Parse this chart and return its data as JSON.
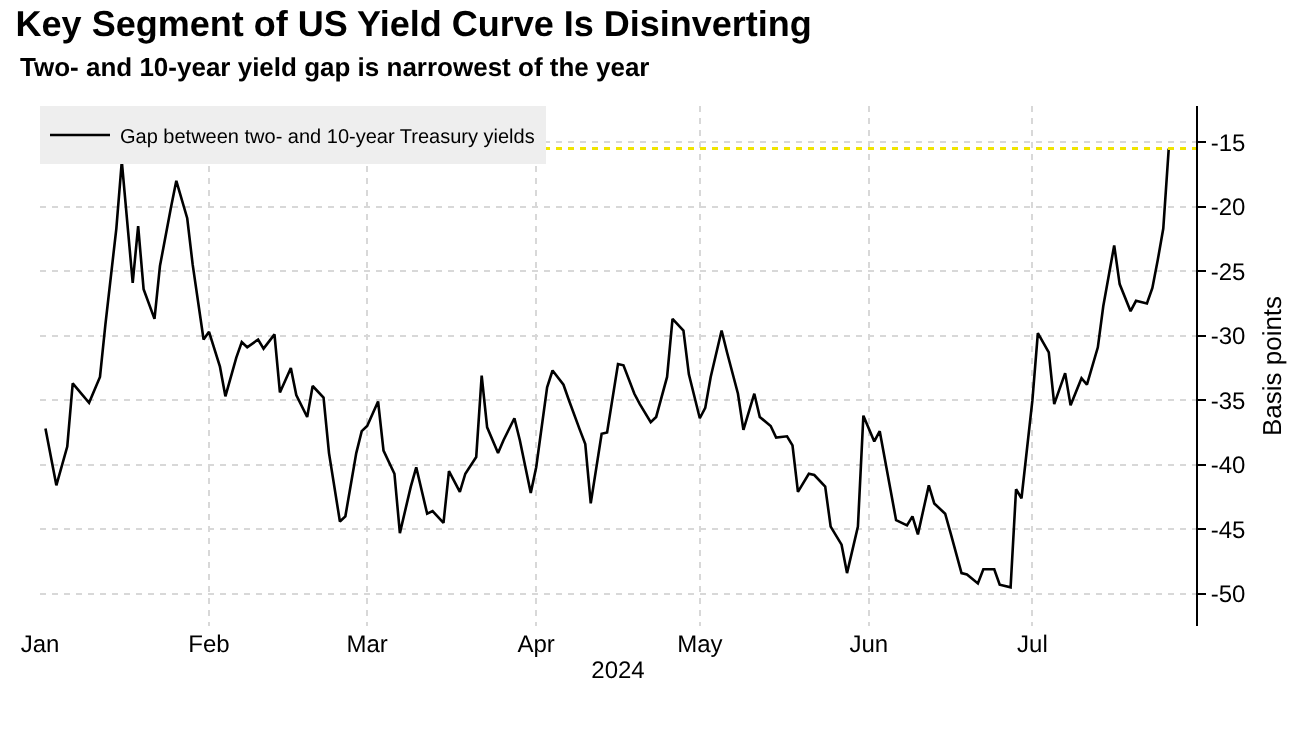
{
  "chart_data": {
    "type": "line",
    "title": "Key Segment of US Yield Curve Is Disinverting",
    "subtitle": "Two- and 10-year yield gap is narrowest of the year",
    "xlabel": "2024",
    "ylabel": "Basis points",
    "x": [
      "2024-01-02",
      "2024-01-04",
      "2024-01-06",
      "2024-01-07",
      "2024-01-10",
      "2024-01-12",
      "2024-01-13",
      "2024-01-15",
      "2024-01-16",
      "2024-01-18",
      "2024-01-19",
      "2024-01-20",
      "2024-01-22",
      "2024-01-23",
      "2024-01-25",
      "2024-01-26",
      "2024-01-28",
      "2024-01-29",
      "2024-01-31",
      "2024-02-01",
      "2024-02-03",
      "2024-02-04",
      "2024-02-06",
      "2024-02-07",
      "2024-02-08",
      "2024-02-10",
      "2024-02-11",
      "2024-02-13",
      "2024-02-14",
      "2024-02-16",
      "2024-02-17",
      "2024-02-19",
      "2024-02-20",
      "2024-02-22",
      "2024-02-23",
      "2024-02-25",
      "2024-02-26",
      "2024-02-28",
      "2024-02-29",
      "2024-03-01",
      "2024-03-03",
      "2024-03-04",
      "2024-03-06",
      "2024-03-07",
      "2024-03-09",
      "2024-03-10",
      "2024-03-12",
      "2024-03-13",
      "2024-03-15",
      "2024-03-16",
      "2024-03-18",
      "2024-03-19",
      "2024-03-21",
      "2024-03-22",
      "2024-03-23",
      "2024-03-25",
      "2024-03-26",
      "2024-03-28",
      "2024-03-29",
      "2024-03-31",
      "2024-04-01",
      "2024-04-03",
      "2024-04-04",
      "2024-04-06",
      "2024-04-07",
      "2024-04-09",
      "2024-04-10",
      "2024-04-11",
      "2024-04-13",
      "2024-04-14",
      "2024-04-16",
      "2024-04-17",
      "2024-04-19",
      "2024-04-20",
      "2024-04-22",
      "2024-04-23",
      "2024-04-25",
      "2024-04-26",
      "2024-04-28",
      "2024-04-29",
      "2024-05-01",
      "2024-05-02",
      "2024-05-03",
      "2024-05-05",
      "2024-05-06",
      "2024-05-08",
      "2024-05-09",
      "2024-05-11",
      "2024-05-12",
      "2024-05-14",
      "2024-05-15",
      "2024-05-17",
      "2024-05-18",
      "2024-05-19",
      "2024-05-21",
      "2024-05-22",
      "2024-05-24",
      "2024-05-25",
      "2024-05-27",
      "2024-05-28",
      "2024-05-30",
      "2024-05-31",
      "2024-06-02",
      "2024-06-03",
      "2024-06-05",
      "2024-06-06",
      "2024-06-08",
      "2024-06-09",
      "2024-06-10",
      "2024-06-12",
      "2024-06-13",
      "2024-06-15",
      "2024-06-16",
      "2024-06-18",
      "2024-06-19",
      "2024-06-21",
      "2024-06-22",
      "2024-06-24",
      "2024-06-25",
      "2024-06-27",
      "2024-06-28",
      "2024-06-29",
      "2024-07-01",
      "2024-07-02",
      "2024-07-04",
      "2024-07-05",
      "2024-07-07",
      "2024-07-08",
      "2024-07-10",
      "2024-07-11",
      "2024-07-13",
      "2024-07-14",
      "2024-07-16",
      "2024-07-17",
      "2024-07-19",
      "2024-07-20",
      "2024-07-22",
      "2024-07-23",
      "2024-07-24",
      "2024-07-25",
      "2024-07-26"
    ],
    "series": [
      {
        "name": "Gap between two- and 10-year Treasury yields",
        "color": "#000000",
        "values": [
          -37.2,
          -41.6,
          -38.6,
          -33.7,
          -35.2,
          -33.2,
          -29.1,
          -21.7,
          -16.5,
          -25.9,
          -21.5,
          -26.4,
          -28.7,
          -24.6,
          -20.1,
          -18.0,
          -20.9,
          -24.5,
          -30.3,
          -29.7,
          -32.4,
          -34.7,
          -31.7,
          -30.5,
          -30.9,
          -30.3,
          -31.0,
          -29.9,
          -34.4,
          -32.5,
          -34.6,
          -36.3,
          -33.9,
          -34.8,
          -39.1,
          -44.4,
          -44.0,
          -39.1,
          -37.4,
          -37.0,
          -35.1,
          -38.9,
          -40.7,
          -45.3,
          -41.7,
          -40.2,
          -43.8,
          -43.6,
          -44.5,
          -40.5,
          -42.1,
          -40.7,
          -39.4,
          -33.1,
          -37.1,
          -39.1,
          -38.1,
          -36.4,
          -38.1,
          -42.2,
          -40.2,
          -34.0,
          -32.7,
          -33.8,
          -35.0,
          -37.3,
          -38.4,
          -43.0,
          -37.6,
          -37.5,
          -32.2,
          -32.3,
          -34.5,
          -35.3,
          -36.7,
          -36.3,
          -33.2,
          -28.7,
          -29.6,
          -33.0,
          -36.4,
          -35.6,
          -33.2,
          -29.6,
          -31.3,
          -34.5,
          -37.3,
          -34.5,
          -36.3,
          -37.0,
          -37.9,
          -37.8,
          -38.5,
          -42.1,
          -40.7,
          -40.8,
          -41.7,
          -44.8,
          -46.2,
          -48.4,
          -44.8,
          -36.2,
          -38.2,
          -37.4,
          -42.0,
          -44.3,
          -44.7,
          -44.0,
          -45.4,
          -41.6,
          -43.0,
          -43.8,
          -45.3,
          -48.4,
          -48.5,
          -49.2,
          -48.1,
          -48.1,
          -49.3,
          -49.5,
          -41.9,
          -42.6,
          -35.0,
          -29.8,
          -31.3,
          -35.3,
          -32.9,
          -35.4,
          -33.3,
          -33.8,
          -30.9,
          -27.7,
          -23.0,
          -26.0,
          -28.1,
          -27.3,
          -27.5,
          -26.3,
          -24.1,
          -21.7,
          -15.5
        ]
      }
    ],
    "xlim": [
      "2024-01-01",
      "2024-07-31"
    ],
    "xticks": [
      {
        "value": "2024-01-01",
        "label": "Jan"
      },
      {
        "value": "2024-02-01",
        "label": "Feb"
      },
      {
        "value": "2024-03-01",
        "label": "Mar"
      },
      {
        "value": "2024-04-01",
        "label": "Apr"
      },
      {
        "value": "2024-05-01",
        "label": "May"
      },
      {
        "value": "2024-06-01",
        "label": "Jun"
      },
      {
        "value": "2024-07-01",
        "label": "Jul"
      }
    ],
    "ylim": [
      -52.5,
      -12.2
    ],
    "yticks": [
      -50,
      -45,
      -40,
      -35,
      -30,
      -25,
      -20,
      -15
    ],
    "ref_lines": [
      {
        "axis": "y",
        "value": -15.5,
        "color": "#f0e400",
        "line_style": "dotted"
      }
    ],
    "grid": true,
    "legend": "top left",
    "marker": "none",
    "line_style": "solid"
  }
}
